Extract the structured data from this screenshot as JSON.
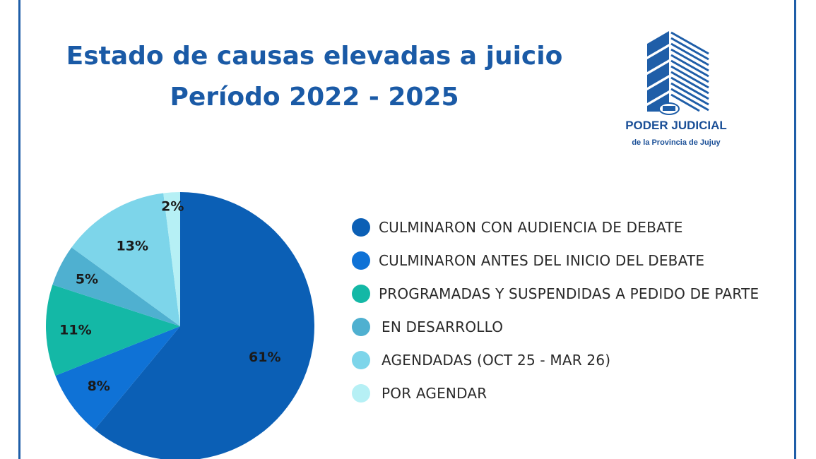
{
  "header": {
    "title_line1": "Estado de causas elevadas a juicio",
    "title_line2": "Período 2022 - 2025"
  },
  "logo": {
    "title": "PODER JUDICIAL",
    "subtitle": "de la Provincia de Jujuy"
  },
  "chart_data": {
    "type": "pie",
    "title": "Estado de causas elevadas a juicio Período 2022 - 2025",
    "legend_placement": "right",
    "slices": [
      {
        "label": "CULMINARON CON AUDIENCIA DE DEBATE",
        "value": 61,
        "value_label": "61%",
        "color": "#0b5fb5"
      },
      {
        "label": "CULMINARON ANTES DEL INICIO DEL DEBATE",
        "value": 8,
        "value_label": "8%",
        "color": "#0f72d6"
      },
      {
        "label": "PROGRAMADAS Y SUSPENDIDAS A PEDIDO DE PARTE",
        "value": 11,
        "value_label": "11%",
        "color": "#14b8a6"
      },
      {
        "label": "EN DESARROLLO",
        "value": 5,
        "value_label": "5%",
        "color": "#4fb0d0"
      },
      {
        "label": "AGENDADAS (OCT 25 - MAR 26)",
        "value": 13,
        "value_label": "13%",
        "color": "#7dd5ea"
      },
      {
        "label": "POR AGENDAR",
        "value": 2,
        "value_label": "2%",
        "color": "#b6f0f5"
      }
    ]
  }
}
